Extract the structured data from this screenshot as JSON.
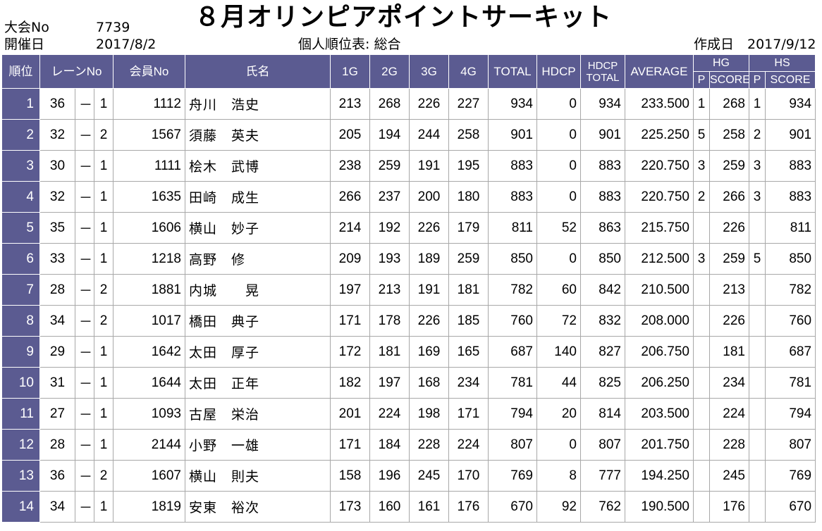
{
  "header": {
    "meet_no_label": "大会No",
    "meet_no_value": "7739",
    "date_label": "開催日",
    "date_value": "2017/8/2",
    "title": "８月オリンピアポイントサーキット",
    "subtitle": "個人順位表: 総合",
    "created_label": "作成日",
    "created_value": "2017/9/12"
  },
  "columns": {
    "rank": "順位",
    "lane": "レーンNo",
    "member": "会員No",
    "name": "氏名",
    "g1": "1G",
    "g2": "2G",
    "g3": "3G",
    "g4": "4G",
    "total": "TOTAL",
    "hdcp": "HDCP",
    "hdcp_total_1": "HDCP",
    "hdcp_total_2": "TOTAL",
    "average": "AVERAGE",
    "hg": "HG",
    "hs": "HS",
    "p": "P",
    "score": "SCORE"
  },
  "rows": [
    {
      "rank": "1",
      "lane": "36",
      "sep": "－",
      "pos": "1",
      "member": "1112",
      "name": "舟川　浩史",
      "g1": "213",
      "g2": "268",
      "g3": "226",
      "g4": "227",
      "total": "934",
      "hdcp": "0",
      "hdcp_total": "934",
      "average": "233.500",
      "hg_p": "1",
      "hg_score": "268",
      "hs_p": "1",
      "hs_score": "934"
    },
    {
      "rank": "2",
      "lane": "32",
      "sep": "－",
      "pos": "2",
      "member": "1567",
      "name": "須藤　英夫",
      "g1": "205",
      "g2": "194",
      "g3": "244",
      "g4": "258",
      "total": "901",
      "hdcp": "0",
      "hdcp_total": "901",
      "average": "225.250",
      "hg_p": "5",
      "hg_score": "258",
      "hs_p": "2",
      "hs_score": "901"
    },
    {
      "rank": "3",
      "lane": "30",
      "sep": "－",
      "pos": "1",
      "member": "1111",
      "name": "桧木　武博",
      "g1": "238",
      "g2": "259",
      "g3": "191",
      "g4": "195",
      "total": "883",
      "hdcp": "0",
      "hdcp_total": "883",
      "average": "220.750",
      "hg_p": "3",
      "hg_score": "259",
      "hs_p": "3",
      "hs_score": "883"
    },
    {
      "rank": "4",
      "lane": "32",
      "sep": "－",
      "pos": "1",
      "member": "1635",
      "name": "田崎　成生",
      "g1": "266",
      "g2": "237",
      "g3": "200",
      "g4": "180",
      "total": "883",
      "hdcp": "0",
      "hdcp_total": "883",
      "average": "220.750",
      "hg_p": "2",
      "hg_score": "266",
      "hs_p": "3",
      "hs_score": "883"
    },
    {
      "rank": "5",
      "lane": "35",
      "sep": "－",
      "pos": "1",
      "member": "1606",
      "name": "横山　妙子",
      "g1": "214",
      "g2": "192",
      "g3": "226",
      "g4": "179",
      "total": "811",
      "hdcp": "52",
      "hdcp_total": "863",
      "average": "215.750",
      "hg_p": "",
      "hg_score": "226",
      "hs_p": "",
      "hs_score": "811"
    },
    {
      "rank": "6",
      "lane": "33",
      "sep": "－",
      "pos": "1",
      "member": "1218",
      "name": "高野　修",
      "g1": "209",
      "g2": "193",
      "g3": "189",
      "g4": "259",
      "total": "850",
      "hdcp": "0",
      "hdcp_total": "850",
      "average": "212.500",
      "hg_p": "3",
      "hg_score": "259",
      "hs_p": "5",
      "hs_score": "850"
    },
    {
      "rank": "7",
      "lane": "28",
      "sep": "－",
      "pos": "2",
      "member": "1881",
      "name": "内城　　晃",
      "g1": "197",
      "g2": "213",
      "g3": "191",
      "g4": "181",
      "total": "782",
      "hdcp": "60",
      "hdcp_total": "842",
      "average": "210.500",
      "hg_p": "",
      "hg_score": "213",
      "hs_p": "",
      "hs_score": "782"
    },
    {
      "rank": "8",
      "lane": "34",
      "sep": "－",
      "pos": "2",
      "member": "1017",
      "name": "橋田　典子",
      "g1": "171",
      "g2": "178",
      "g3": "226",
      "g4": "185",
      "total": "760",
      "hdcp": "72",
      "hdcp_total": "832",
      "average": "208.000",
      "hg_p": "",
      "hg_score": "226",
      "hs_p": "",
      "hs_score": "760"
    },
    {
      "rank": "9",
      "lane": "29",
      "sep": "－",
      "pos": "1",
      "member": "1642",
      "name": "太田　厚子",
      "g1": "172",
      "g2": "181",
      "g3": "169",
      "g4": "165",
      "total": "687",
      "hdcp": "140",
      "hdcp_total": "827",
      "average": "206.750",
      "hg_p": "",
      "hg_score": "181",
      "hs_p": "",
      "hs_score": "687"
    },
    {
      "rank": "10",
      "lane": "31",
      "sep": "－",
      "pos": "1",
      "member": "1644",
      "name": "太田　正年",
      "g1": "182",
      "g2": "197",
      "g3": "168",
      "g4": "234",
      "total": "781",
      "hdcp": "44",
      "hdcp_total": "825",
      "average": "206.250",
      "hg_p": "",
      "hg_score": "234",
      "hs_p": "",
      "hs_score": "781"
    },
    {
      "rank": "11",
      "lane": "27",
      "sep": "－",
      "pos": "1",
      "member": "1093",
      "name": "古屋　栄治",
      "g1": "201",
      "g2": "224",
      "g3": "198",
      "g4": "171",
      "total": "794",
      "hdcp": "20",
      "hdcp_total": "814",
      "average": "203.500",
      "hg_p": "",
      "hg_score": "224",
      "hs_p": "",
      "hs_score": "794"
    },
    {
      "rank": "12",
      "lane": "28",
      "sep": "－",
      "pos": "1",
      "member": "2144",
      "name": "小野　一雄",
      "g1": "171",
      "g2": "184",
      "g3": "228",
      "g4": "224",
      "total": "807",
      "hdcp": "0",
      "hdcp_total": "807",
      "average": "201.750",
      "hg_p": "",
      "hg_score": "228",
      "hs_p": "",
      "hs_score": "807"
    },
    {
      "rank": "13",
      "lane": "36",
      "sep": "－",
      "pos": "2",
      "member": "1607",
      "name": "横山　則夫",
      "g1": "158",
      "g2": "196",
      "g3": "245",
      "g4": "170",
      "total": "769",
      "hdcp": "8",
      "hdcp_total": "777",
      "average": "194.250",
      "hg_p": "",
      "hg_score": "245",
      "hs_p": "",
      "hs_score": "769"
    },
    {
      "rank": "14",
      "lane": "34",
      "sep": "－",
      "pos": "1",
      "member": "1819",
      "name": "安東　裕次",
      "g1": "173",
      "g2": "160",
      "g3": "161",
      "g4": "176",
      "total": "670",
      "hdcp": "92",
      "hdcp_total": "762",
      "average": "190.500",
      "hg_p": "",
      "hg_score": "176",
      "hs_p": "",
      "hs_score": "670"
    }
  ],
  "colors": {
    "header_bg": "#5b5b91",
    "header_text": "#ffffff",
    "grid": "#a8a8a8"
  }
}
